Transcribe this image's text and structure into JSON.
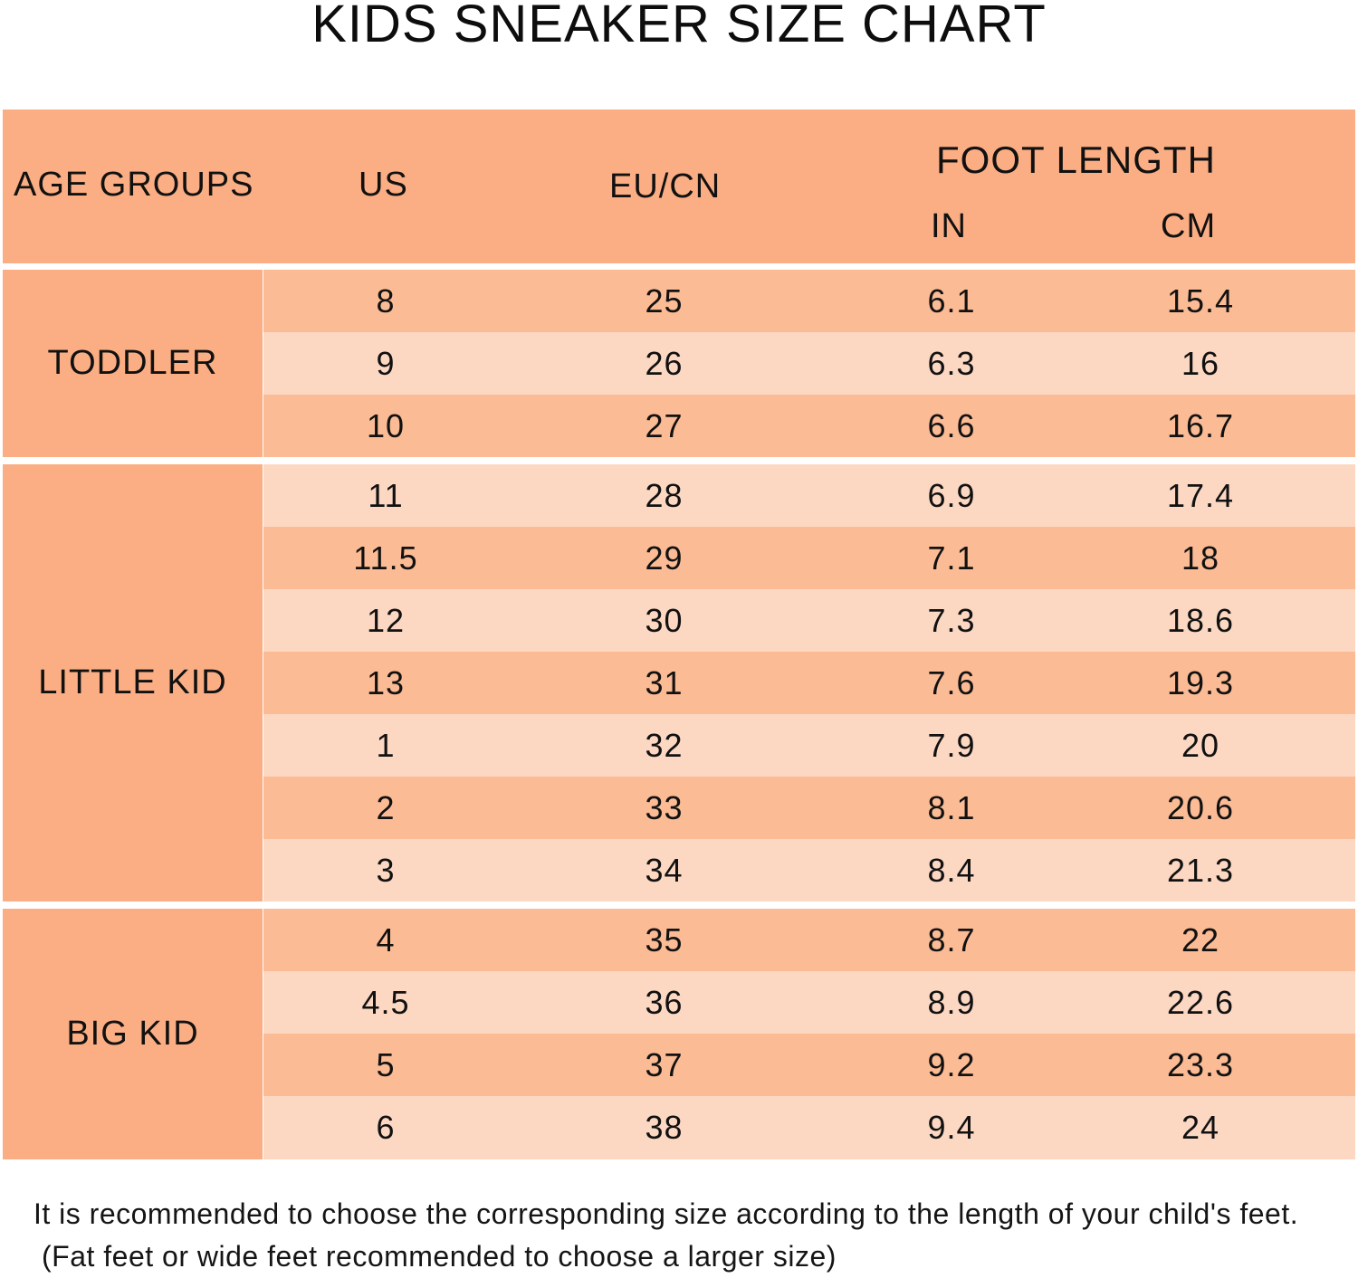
{
  "title": "KIDS SNEAKER SIZE CHART",
  "headers": {
    "age_groups": "AGE GROUPS",
    "us": "US",
    "eu_cn": "EU/CN",
    "foot_length": "FOOT LENGTH",
    "in": "IN",
    "cm": "CM"
  },
  "groups": {
    "toddler": "TODDLER",
    "little_kid": "LITTLE KID",
    "big_kid": "BIG KID"
  },
  "rows": [
    {
      "us": "8",
      "eu": "25",
      "in": "6.1",
      "cm": "15.4"
    },
    {
      "us": "9",
      "eu": "26",
      "in": "6.3",
      "cm": "16"
    },
    {
      "us": "10",
      "eu": "27",
      "in": "6.6",
      "cm": "16.7"
    },
    {
      "us": "11",
      "eu": "28",
      "in": "6.9",
      "cm": "17.4"
    },
    {
      "us": "11.5",
      "eu": "29",
      "in": "7.1",
      "cm": "18"
    },
    {
      "us": "12",
      "eu": "30",
      "in": "7.3",
      "cm": "18.6"
    },
    {
      "us": "13",
      "eu": "31",
      "in": "7.6",
      "cm": "19.3"
    },
    {
      "us": "1",
      "eu": "32",
      "in": "7.9",
      "cm": "20"
    },
    {
      "us": "2",
      "eu": "33",
      "in": "8.1",
      "cm": "20.6"
    },
    {
      "us": "3",
      "eu": "34",
      "in": "8.4",
      "cm": "21.3"
    },
    {
      "us": "4",
      "eu": "35",
      "in": "8.7",
      "cm": "22"
    },
    {
      "us": "4.5",
      "eu": "36",
      "in": "8.9",
      "cm": "22.6"
    },
    {
      "us": "5",
      "eu": "37",
      "in": "9.2",
      "cm": "23.3"
    },
    {
      "us": "6",
      "eu": "38",
      "in": "9.4",
      "cm": "24"
    }
  ],
  "notes": {
    "line1": "It is recommended to choose the corresponding size according to the length of your child's feet.",
    "line2": "(Fat feet or wide feet recommended to choose a larger size)"
  },
  "colors": {
    "header": "#fbae84",
    "group_cell": "#fbae84",
    "row_dark": "#fbbb95",
    "row_light": "#fcd8c3"
  }
}
